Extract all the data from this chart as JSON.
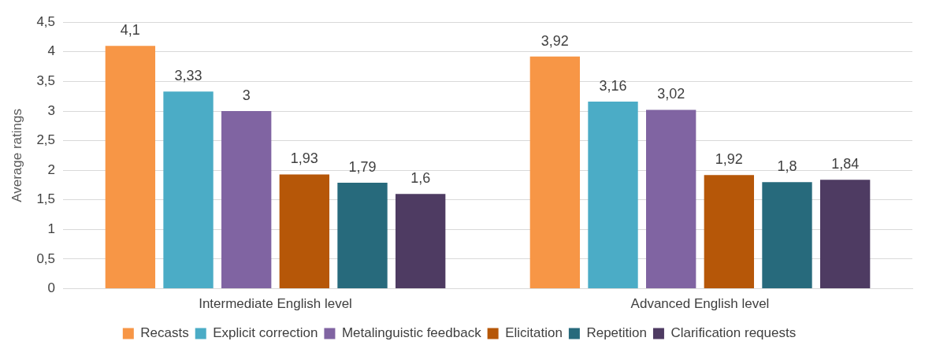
{
  "chart_data": {
    "type": "bar",
    "ylabel": "Average ratings",
    "categories": [
      "Intermediate English level",
      "Advanced English level"
    ],
    "series": [
      {
        "name": "Recasts",
        "color": "#f79646",
        "values": [
          4.1,
          3.92
        ],
        "value_labels": [
          "4,1",
          "3,92"
        ]
      },
      {
        "name": "Explicit correction",
        "color": "#4bacc6",
        "values": [
          3.33,
          3.16
        ],
        "value_labels": [
          "3,33",
          "3,16"
        ]
      },
      {
        "name": "Metalinguistic feedback",
        "color": "#8064a2",
        "values": [
          3,
          3.02
        ],
        "value_labels": [
          "3",
          "3,02"
        ]
      },
      {
        "name": "Elicitation",
        "color": "#b65708",
        "values": [
          1.93,
          1.92
        ],
        "value_labels": [
          "1,93",
          "1,92"
        ]
      },
      {
        "name": "Repetition",
        "color": "#276a7c",
        "values": [
          1.79,
          1.8
        ],
        "value_labels": [
          "1,79",
          "1,8"
        ]
      },
      {
        "name": "Clarification requests",
        "color": "#4e3b62",
        "values": [
          1.6,
          1.84
        ],
        "value_labels": [
          "1,6",
          "1,84"
        ]
      }
    ],
    "ylim": [
      0,
      4.5
    ],
    "yticks": [
      0,
      {
        "value": 0.5,
        "label": "0,5"
      },
      1,
      {
        "value": 1.5,
        "label": "1,5"
      },
      2,
      {
        "value": 2.5,
        "label": "2,5"
      },
      3,
      {
        "value": 3.5,
        "label": "3,5"
      },
      4,
      {
        "value": 4.5,
        "label": "4,5"
      }
    ],
    "grid": "y",
    "legend": "bottom"
  }
}
